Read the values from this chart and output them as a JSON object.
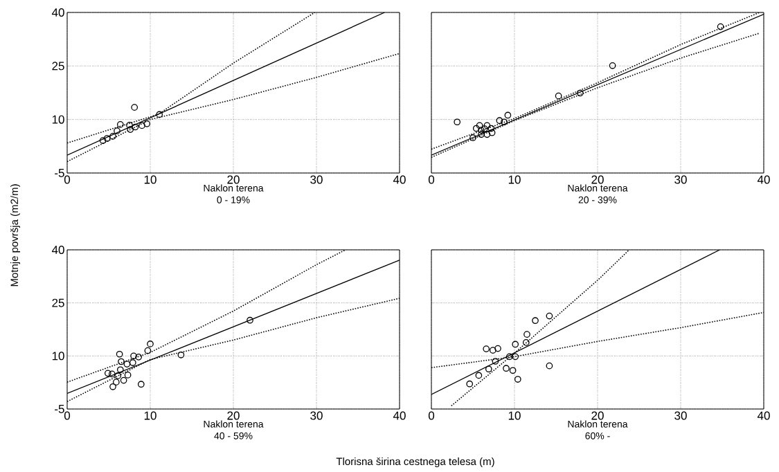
{
  "chart_data": [
    {
      "type": "scatter",
      "xlabel": "Naklon terena",
      "ylabel": "Motnje površja (m2/m)",
      "annotations": [
        "0 - 19%"
      ],
      "xlim": [
        0,
        40
      ],
      "ylim": [
        -5,
        40
      ],
      "xticks": [
        0,
        10,
        20,
        30,
        40
      ],
      "yticks": [
        -5,
        10,
        25,
        40
      ],
      "grid": true,
      "series": [
        {
          "type": "scatter",
          "color": "#000000",
          "marker": "circle",
          "x": [
            4.3,
            4.8,
            5.5,
            6.0,
            6.4,
            7.5,
            7.6,
            8.2,
            9.0,
            9.6,
            8.1,
            11.1
          ],
          "values": [
            4.1,
            4.7,
            5.3,
            6.8,
            8.6,
            8.4,
            7.2,
            7.9,
            8.3,
            8.8,
            13.4,
            11.4
          ]
        },
        {
          "type": "line",
          "color": "#000000",
          "marker": "none",
          "line_style": "solid",
          "x": [
            0,
            38.2
          ],
          "values": [
            0,
            40
          ]
        },
        {
          "type": "line",
          "color": "#000000",
          "marker": "none",
          "line_style": "dotted",
          "x": [
            0,
            11,
            20,
            29.8
          ],
          "values": [
            3.4,
            11.5,
            25.8,
            40
          ]
        },
        {
          "type": "line",
          "color": "#000000",
          "marker": "none",
          "line_style": "dotted",
          "x": [
            0,
            10,
            20,
            30,
            40
          ],
          "values": [
            -1.8,
            10,
            15.6,
            21.8,
            28.5
          ]
        }
      ]
    },
    {
      "type": "scatter",
      "xlabel": "Naklon terena",
      "annotations": [
        "20 - 39%"
      ],
      "xlim": [
        0,
        40
      ],
      "ylim": [
        -5,
        40
      ],
      "xticks": [
        0,
        10,
        20,
        30,
        40
      ],
      "yticks": [
        -5,
        10,
        25,
        40
      ],
      "grid": true,
      "tick_labels": "x",
      "series": [
        {
          "type": "scatter",
          "color": "#000000",
          "marker": "circle",
          "x": [
            3.1,
            5.0,
            5.8,
            6.0,
            6.4,
            6.7,
            7.2,
            6.0,
            6.7,
            7.3,
            5.4,
            8.2,
            8.75,
            9.2,
            15.3,
            17.9,
            21.8,
            34.8
          ],
          "values": [
            9.3,
            4.9,
            8.3,
            7.0,
            7.4,
            8.3,
            7.5,
            5.8,
            5.8,
            6.3,
            7.5,
            9.7,
            9.3,
            11.2,
            16.6,
            17.4,
            25.1,
            36.0
          ]
        },
        {
          "type": "line",
          "color": "#000000",
          "marker": "none",
          "line_style": "solid",
          "x": [
            0,
            40
          ],
          "values": [
            0,
            39.5
          ]
        },
        {
          "type": "line",
          "color": "#000000",
          "marker": "none",
          "line_style": "dotted",
          "x": [
            0,
            10,
            20,
            30,
            39.5
          ],
          "values": [
            1.7,
            10.3,
            20.3,
            31.0,
            40
          ]
        },
        {
          "type": "line",
          "color": "#000000",
          "marker": "none",
          "line_style": "dotted",
          "x": [
            0,
            10,
            20,
            30,
            39.5
          ],
          "values": [
            -0.6,
            9.7,
            18.9,
            27.2,
            34.2
          ]
        }
      ]
    },
    {
      "type": "scatter",
      "xlabel": "Naklon terena",
      "annotations": [
        "40 - 59%",
        "Tlorisna širina cestnega telesa (m)"
      ],
      "xlim": [
        0,
        40
      ],
      "ylim": [
        -5,
        40
      ],
      "xticks": [
        0,
        10,
        20,
        30,
        40
      ],
      "yticks": [
        -5,
        10,
        25,
        40
      ],
      "grid": true,
      "series": [
        {
          "type": "scatter",
          "color": "#000000",
          "marker": "circle",
          "x": [
            4.9,
            5.4,
            5.5,
            5.9,
            6.3,
            6.5,
            7.2,
            6.4,
            6.1,
            6.8,
            7.3,
            7.9,
            8.0,
            8.6,
            8.9,
            9.7,
            10.0,
            13.7,
            22.0
          ],
          "values": [
            5.1,
            4.9,
            1.3,
            2.6,
            10.5,
            8.4,
            7.7,
            6.1,
            4.4,
            3.1,
            4.6,
            8.1,
            10.0,
            9.7,
            2.0,
            11.5,
            13.4,
            10.3,
            20.1
          ]
        },
        {
          "type": "line",
          "color": "#000000",
          "marker": "none",
          "line_style": "solid",
          "x": [
            0,
            40
          ],
          "values": [
            -0.6,
            37.1
          ]
        },
        {
          "type": "line",
          "color": "#000000",
          "marker": "none",
          "line_style": "dotted",
          "x": [
            0,
            10,
            20,
            30,
            33.5
          ],
          "values": [
            2.6,
            11,
            22.7,
            35.8,
            40
          ]
        },
        {
          "type": "line",
          "color": "#000000",
          "marker": "none",
          "line_style": "dotted",
          "x": [
            0,
            10,
            20,
            30,
            40
          ],
          "values": [
            -2.9,
            9.0,
            14.5,
            20.8,
            26.3
          ]
        }
      ]
    },
    {
      "type": "scatter",
      "xlabel": "Naklon terena",
      "annotations": [
        "60% -"
      ],
      "xlim": [
        0,
        40
      ],
      "ylim": [
        -5,
        40
      ],
      "xticks": [
        0,
        10,
        20,
        30,
        40
      ],
      "yticks": [
        -5,
        10,
        25,
        40
      ],
      "grid": true,
      "tick_labels": "x",
      "series": [
        {
          "type": "scatter",
          "color": "#000000",
          "marker": "circle",
          "x": [
            4.6,
            5.7,
            6.9,
            6.6,
            7.4,
            8.0,
            7.7,
            9.0,
            9.4,
            10.1,
            9.8,
            10.4,
            10.1,
            11.4,
            11.5,
            12.5,
            14.2,
            14.2
          ],
          "values": [
            2.1,
            4.5,
            6.3,
            12.0,
            11.6,
            12.1,
            8.5,
            6.5,
            9.8,
            9.8,
            5.9,
            3.4,
            13.3,
            13.8,
            16.1,
            20.0,
            21.3,
            7.2
          ]
        },
        {
          "type": "line",
          "color": "#000000",
          "marker": "none",
          "line_style": "solid",
          "x": [
            0,
            34.7
          ],
          "values": [
            -0.9,
            40
          ]
        },
        {
          "type": "line",
          "color": "#000000",
          "marker": "none",
          "line_style": "dotted",
          "x": [
            2.4,
            10,
            20,
            23.8
          ],
          "values": [
            -4.1,
            10.8,
            31.4,
            40
          ]
        },
        {
          "type": "line",
          "color": "#000000",
          "marker": "none",
          "line_style": "dotted",
          "x": [
            0,
            10,
            20,
            30,
            40
          ],
          "values": [
            6.7,
            9.8,
            14.1,
            18.0,
            22.3
          ]
        }
      ]
    }
  ]
}
